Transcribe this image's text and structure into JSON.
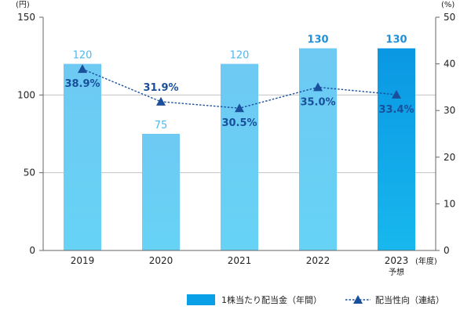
{
  "chart_data": {
    "type": "bar",
    "categories": [
      "2019",
      "2020",
      "2021",
      "2022",
      "2023"
    ],
    "category_sublabels": [
      "",
      "",
      "",
      "",
      "予想"
    ],
    "x_suffix": "(年度)",
    "left_axis": {
      "unit": "(円)",
      "ylim": [
        0,
        150
      ],
      "ticks": [
        "0",
        "50",
        "100",
        "150"
      ]
    },
    "right_axis": {
      "unit": "(%)",
      "ylim": [
        0,
        50
      ],
      "ticks": [
        "0",
        "10",
        "20",
        "30",
        "40",
        "50"
      ]
    },
    "series": [
      {
        "name": "1株当たり配当金（年間）",
        "kind": "bar",
        "axis": "left",
        "values": [
          120,
          75,
          120,
          130,
          130
        ],
        "labels": [
          "120",
          "75",
          "120",
          "130",
          "130"
        ]
      },
      {
        "name": "配当性向（連結）",
        "kind": "line",
        "axis": "right",
        "values": [
          38.9,
          31.9,
          30.5,
          35.0,
          33.4
        ],
        "labels": [
          "38.9%",
          "31.9%",
          "30.5%",
          "35.0%",
          "33.4%"
        ]
      }
    ],
    "colors": {
      "bar": "#6ec9f3",
      "bar_forecast": "#0aa0e8",
      "bar_label_light": "#4fb8ee",
      "bar_label_dark": "#1e8fd8",
      "line": "#1a4f9c",
      "gridline": "#bbbbbb"
    },
    "grid": true,
    "legend_position": "bottom-right"
  }
}
